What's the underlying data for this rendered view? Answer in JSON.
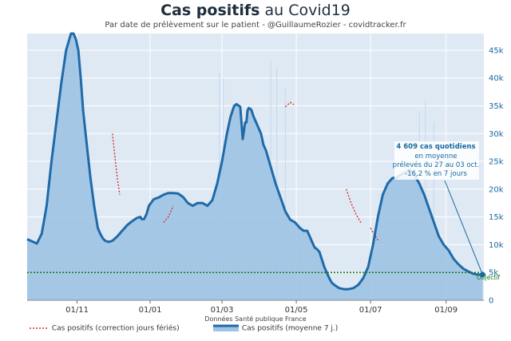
{
  "header": {
    "title_bold": "Cas positifs",
    "title_rest": " au Covid19",
    "subtitle": "Par date de prélèvement sur le patient - @GuillaumeRozier - covidtracker.fr"
  },
  "source": "Données Santé publique France",
  "colors": {
    "background": "#dfe9f4",
    "fill": "#9fc3e4",
    "line": "#1f6aa8",
    "correction": "#d32f2f",
    "objective": "#137a13",
    "annotation": "#17699e"
  },
  "annotation": {
    "line1": "4 609 cas quotidiens",
    "line2": "en moyenne",
    "line3": "prélevés du 27 au 03 oct.",
    "line4": "-16,2 % en 7 jours"
  },
  "objective_label": "Objectif",
  "legend": {
    "correction": "Cas positifs (correction jours fériés)",
    "average": "Cas positifs (moyenne 7 j.)"
  },
  "chart_data": {
    "type": "area",
    "title": "Cas positifs au Covid19",
    "ylabel": "",
    "xlabel": "",
    "ylim": [
      0,
      48000
    ],
    "xlim": [
      0,
      375
    ],
    "y_ticks": [
      {
        "value": 0,
        "label": "0"
      },
      {
        "value": 5000,
        "label": "5k"
      },
      {
        "value": 10000,
        "label": "10k"
      },
      {
        "value": 15000,
        "label": "15k"
      },
      {
        "value": 20000,
        "label": "20k"
      },
      {
        "value": 25000,
        "label": "25k"
      },
      {
        "value": 30000,
        "label": "30k"
      },
      {
        "value": 35000,
        "label": "35k"
      },
      {
        "value": 40000,
        "label": "40k"
      },
      {
        "value": 45000,
        "label": "45k"
      }
    ],
    "x_ticks": [
      {
        "day": 41,
        "label": "01/11"
      },
      {
        "day": 101,
        "label": "01/01"
      },
      {
        "day": 160,
        "label": "01/03"
      },
      {
        "day": 221,
        "label": "01/05"
      },
      {
        "day": 282,
        "label": "01/07"
      },
      {
        "day": 344,
        "label": "01/09"
      }
    ],
    "series": [
      {
        "name": "Cas positifs (moyenne 7 j.)",
        "x": [
          0,
          5,
          8,
          12,
          16,
          20,
          24,
          28,
          32,
          36,
          38,
          40,
          42,
          44,
          46,
          49,
          52,
          55,
          58,
          60,
          62,
          64,
          67,
          70,
          74,
          78,
          82,
          86,
          90,
          93,
          94,
          96,
          98,
          100,
          104,
          108,
          112,
          116,
          120,
          124,
          128,
          132,
          136,
          140,
          144,
          148,
          152,
          156,
          160,
          164,
          167,
          170,
          172,
          175,
          177,
          179,
          180,
          181,
          182,
          184,
          186,
          188,
          190,
          192,
          194,
          196,
          200,
          204,
          208,
          212,
          216,
          220,
          224,
          227,
          230,
          234,
          236,
          238,
          240,
          244,
          248,
          250,
          252,
          256,
          260,
          264,
          268,
          272,
          276,
          280,
          284,
          288,
          292,
          296,
          298,
          300,
          303,
          306,
          310,
          314,
          318,
          322,
          326,
          330,
          334,
          338,
          342,
          346,
          350,
          354,
          358,
          362,
          366,
          370,
          374
        ],
        "y": [
          11000,
          10500,
          10200,
          12000,
          17000,
          25000,
          32000,
          39000,
          45000,
          48000,
          48000,
          47000,
          45000,
          40000,
          34000,
          28000,
          22000,
          17000,
          13000,
          12000,
          11200,
          10700,
          10500,
          10700,
          11500,
          12500,
          13500,
          14200,
          14800,
          15000,
          14600,
          14600,
          15500,
          17000,
          18200,
          18500,
          19000,
          19300,
          19300,
          19200,
          18600,
          17500,
          17000,
          17500,
          17500,
          17000,
          18000,
          21000,
          25000,
          30000,
          33000,
          35000,
          35300,
          34800,
          29000,
          32000,
          32000,
          34200,
          34600,
          34300,
          33000,
          32000,
          31000,
          30000,
          28000,
          27000,
          24000,
          21000,
          18500,
          16000,
          14500,
          14000,
          13000,
          12500,
          12500,
          10500,
          9500,
          9200,
          8700,
          6000,
          4000,
          3200,
          2800,
          2200,
          2000,
          2000,
          2200,
          2800,
          4000,
          6000,
          10000,
          15000,
          19000,
          21000,
          21500,
          22000,
          22000,
          22500,
          23000,
          23500,
          22500,
          21000,
          19000,
          16500,
          14000,
          11500,
          10000,
          9000,
          7500,
          6500,
          5700,
          5200,
          4800,
          4610,
          4609
        ],
        "end_label": "4 609"
      },
      {
        "name": "Cas positifs (correction jours fériés)",
        "segments": [
          {
            "x": [
              70,
              72,
              74,
              76
            ],
            "y": [
              30000,
              26000,
              22000,
              19000
            ]
          },
          {
            "x": [
              112,
              116,
              120
            ],
            "y": [
              14000,
              15000,
              17000
            ]
          },
          {
            "x": [
              212,
              216,
              219
            ],
            "y": [
              34800,
              35600,
              35200
            ]
          },
          {
            "x": [
              262,
              266,
              270,
              274
            ],
            "y": [
              20000,
              17500,
              15500,
              14000
            ]
          },
          {
            "x": [
              282,
              284,
              286,
              288
            ],
            "y": [
              13000,
              12200,
              11500,
              10800
            ]
          }
        ]
      }
    ],
    "raw_daily_cases_spikes": [
      {
        "x": 158,
        "y": 41000
      },
      {
        "x": 161,
        "y": 40000
      },
      {
        "x": 200,
        "y": 43000
      },
      {
        "x": 205,
        "y": 42000
      },
      {
        "x": 212,
        "y": 38000
      },
      {
        "x": 322,
        "y": 34000
      },
      {
        "x": 327,
        "y": 36000
      },
      {
        "x": 334,
        "y": 32000
      }
    ],
    "objective": {
      "value": 5000,
      "label": "Objectif"
    },
    "annotation_point": {
      "x": 374,
      "y": 4609
    },
    "source": "Données Santé publique France"
  }
}
